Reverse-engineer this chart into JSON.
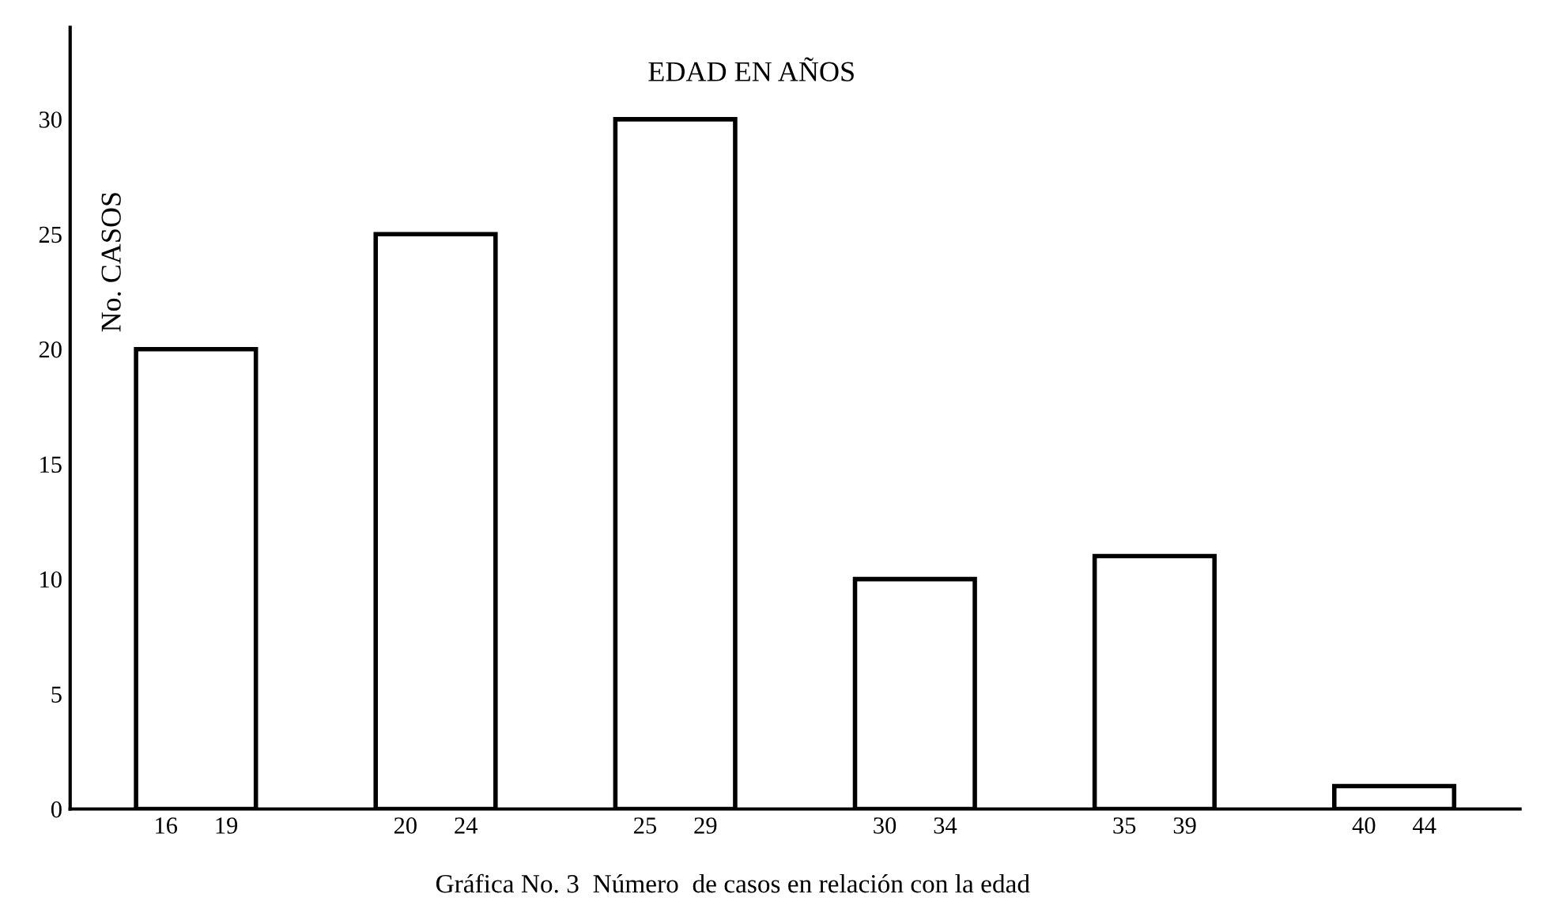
{
  "chart_data": {
    "type": "bar",
    "title": "EDAD EN AÑOS",
    "ylabel": "No. CASOS",
    "categories": [
      "16      19",
      "20      24",
      "25      29",
      "30      34",
      "35      39",
      "40      44"
    ],
    "values": [
      20,
      25,
      30,
      10,
      11,
      1
    ],
    "color": "#ffffff",
    "ylim": [
      0,
      34
    ],
    "yticks": [
      0,
      5,
      10,
      15,
      20,
      25,
      30
    ],
    "grid": false,
    "legend": false,
    "annotations": [
      "Gráfica No. 3  Número  de casos en relación con la edad"
    ]
  }
}
